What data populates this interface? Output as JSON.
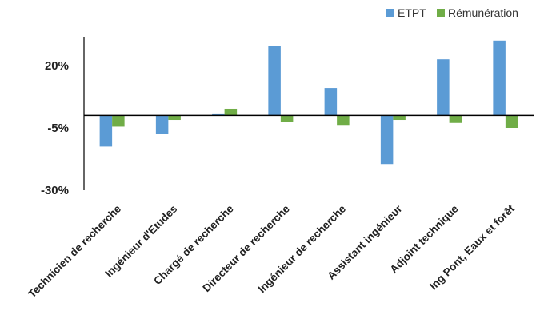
{
  "chart_data": {
    "type": "bar",
    "title": "",
    "xlabel": "",
    "ylabel": "",
    "categories": [
      "Technicien de recherche",
      "Ingénieur d'Etudes",
      "Chargé de recherche",
      "Directeur de recherche",
      "Ingénieur de recherche",
      "Assistant ingénieur",
      "Adjoint technique",
      "Ing Pont, Eaux et forêt"
    ],
    "series": [
      {
        "name": "ETPT",
        "color": "#5B9BD5",
        "values": [
          -12.5,
          -7.5,
          0.8,
          28,
          11,
          -19.5,
          22.5,
          30
        ]
      },
      {
        "name": "Rémunération",
        "color": "#70AD47",
        "values": [
          -4.5,
          -1.8,
          2.7,
          -2.5,
          -3.8,
          -1.8,
          -3.0,
          -5.0
        ]
      }
    ],
    "ylim": [
      -30,
      30
    ],
    "yticks": [
      20,
      -5,
      -30
    ],
    "ytick_labels": [
      "20%",
      "-5%",
      "-30%"
    ],
    "grid": false,
    "legend_position": "top-right"
  }
}
